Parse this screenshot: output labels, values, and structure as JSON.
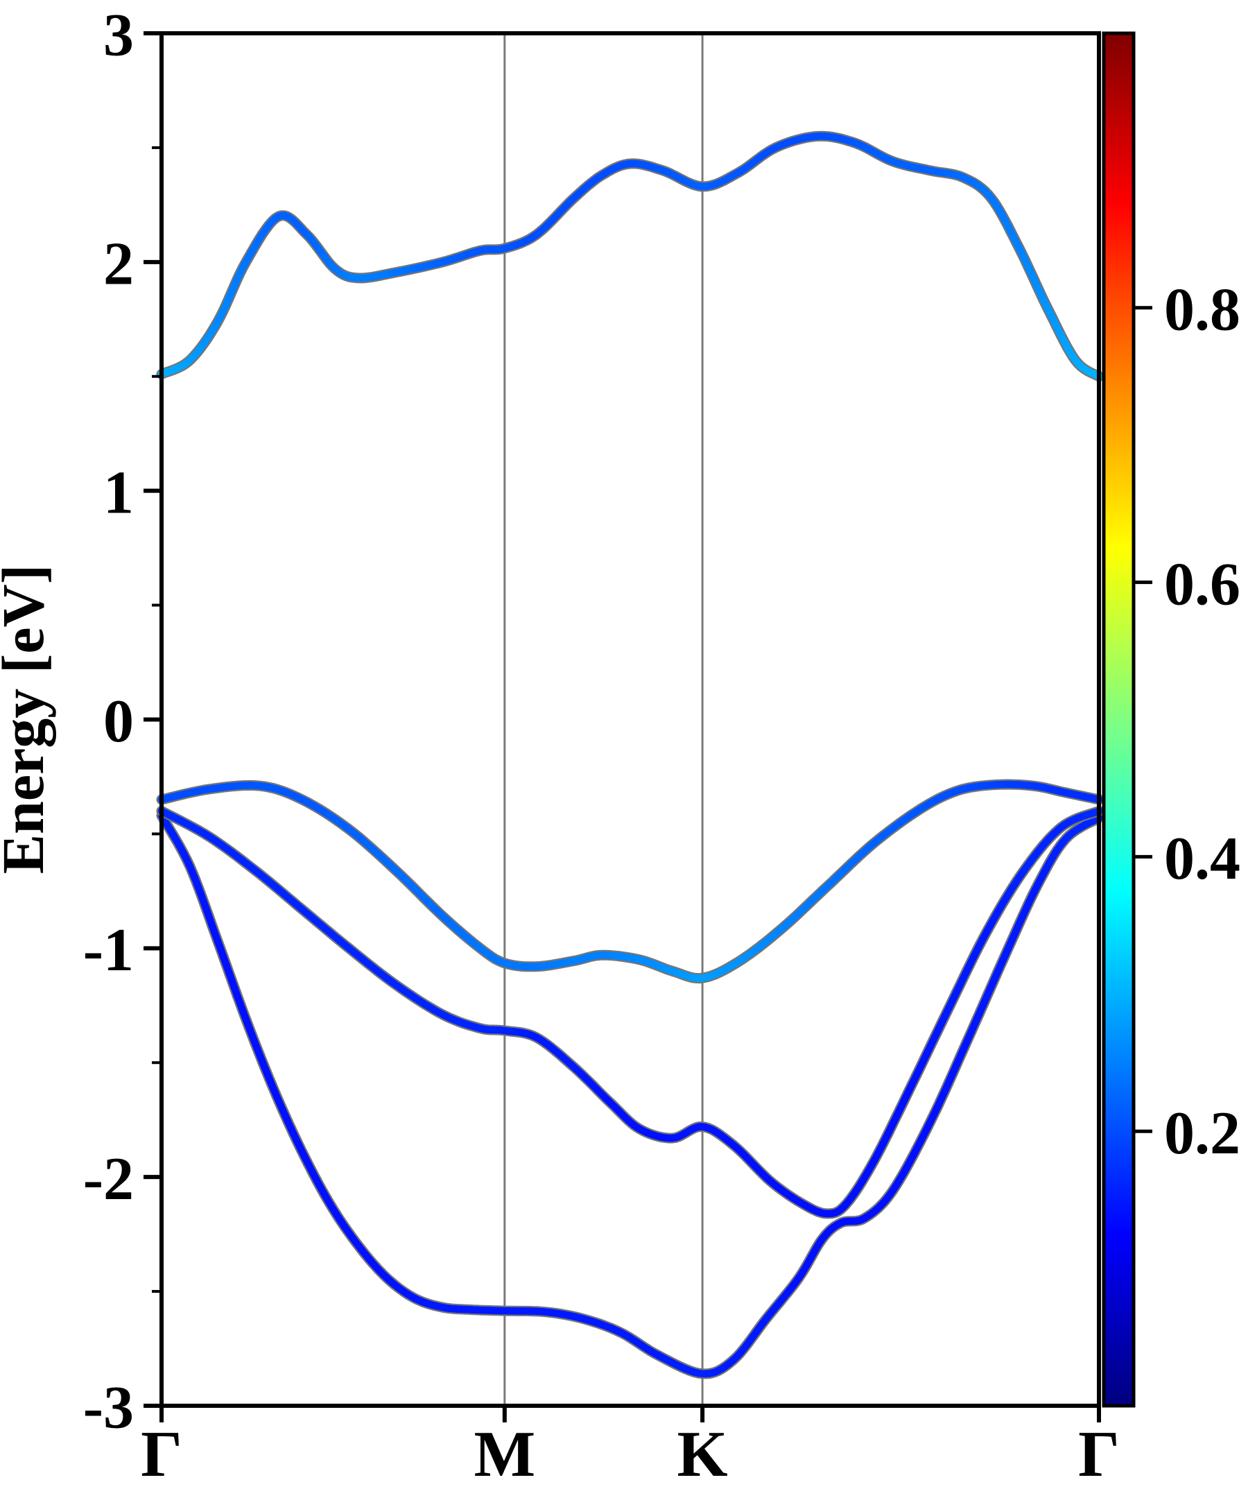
{
  "axes": {
    "ylabel": "Energy [eV]",
    "y_ticks": [
      3,
      2,
      1,
      0,
      -1,
      -2,
      -3
    ],
    "y_tick_labels": [
      "3",
      "2",
      "1",
      "0",
      "-1",
      "-2",
      "-3"
    ],
    "y_minor_ticks": [
      2.5,
      1.5,
      0.5,
      -0.5,
      -1.5,
      -2.5
    ],
    "x_tick_labels": [
      "Γ",
      "M",
      "K",
      "Γ"
    ],
    "x_tick_positions": [
      0,
      0.366,
      0.577,
      1
    ],
    "gridline_positions": [
      0.366,
      0.577
    ],
    "grid_color": "#7a7a7a",
    "spine_color": "#000000"
  },
  "colorbar": {
    "vmin": 0,
    "vmax": 1,
    "ticks": [
      0.2,
      0.4,
      0.6,
      0.8
    ],
    "tick_labels": [
      "0.2",
      "0.4",
      "0.6",
      "0.8"
    ],
    "colormap": "jet"
  },
  "chart_data": {
    "type": "line",
    "title": "",
    "xlabel": "",
    "ylabel": "Energy [eV]",
    "ylim": [
      -3,
      3
    ],
    "k_path_labels": [
      "Γ",
      "M",
      "K",
      "Γ"
    ],
    "k_path_positions": [
      0,
      0.366,
      0.577,
      1
    ],
    "line_outline_color": "#757575",
    "series": [
      {
        "name": "valence-band-1",
        "x": [
          0,
          0.03,
          0.06,
          0.09,
          0.12,
          0.15,
          0.18,
          0.21,
          0.24,
          0.27,
          0.3,
          0.33,
          0.366,
          0.41,
          0.45,
          0.49,
          0.53,
          0.577,
          0.61,
          0.645,
          0.68,
          0.705,
          0.725,
          0.75,
          0.78,
          0.82,
          0.86,
          0.9,
          0.935,
          0.965,
          1.0
        ],
        "y": [
          -0.42,
          -0.64,
          -0.97,
          -1.31,
          -1.62,
          -1.89,
          -2.12,
          -2.3,
          -2.44,
          -2.53,
          -2.57,
          -2.58,
          -2.585,
          -2.59,
          -2.62,
          -2.68,
          -2.78,
          -2.86,
          -2.8,
          -2.62,
          -2.44,
          -2.27,
          -2.2,
          -2.18,
          -2.06,
          -1.76,
          -1.4,
          -1.03,
          -0.72,
          -0.52,
          -0.43
        ],
        "color_value": [
          0.16,
          0.15,
          0.14,
          0.14,
          0.14,
          0.14,
          0.14,
          0.14,
          0.14,
          0.145,
          0.15,
          0.15,
          0.15,
          0.15,
          0.15,
          0.15,
          0.15,
          0.16,
          0.15,
          0.15,
          0.14,
          0.14,
          0.14,
          0.14,
          0.14,
          0.14,
          0.145,
          0.15,
          0.15,
          0.16,
          0.16
        ]
      },
      {
        "name": "valence-band-2",
        "x": [
          0,
          0.05,
          0.1,
          0.15,
          0.2,
          0.25,
          0.3,
          0.34,
          0.366,
          0.4,
          0.44,
          0.48,
          0.51,
          0.545,
          0.577,
          0.61,
          0.65,
          0.685,
          0.71,
          0.73,
          0.76,
          0.8,
          0.84,
          0.88,
          0.92,
          0.96,
          1.0
        ],
        "y": [
          -0.4,
          -0.51,
          -0.66,
          -0.83,
          -1.0,
          -1.16,
          -1.29,
          -1.35,
          -1.36,
          -1.39,
          -1.52,
          -1.68,
          -1.79,
          -1.83,
          -1.78,
          -1.86,
          -2.02,
          -2.12,
          -2.16,
          -2.12,
          -1.93,
          -1.6,
          -1.26,
          -0.93,
          -0.66,
          -0.47,
          -0.4
        ],
        "color_value": [
          0.17,
          0.16,
          0.16,
          0.16,
          0.16,
          0.16,
          0.16,
          0.16,
          0.16,
          0.15,
          0.15,
          0.14,
          0.14,
          0.14,
          0.145,
          0.14,
          0.14,
          0.14,
          0.14,
          0.14,
          0.14,
          0.14,
          0.15,
          0.15,
          0.16,
          0.16,
          0.17
        ]
      },
      {
        "name": "valence-band-3",
        "x": [
          0,
          0.05,
          0.105,
          0.15,
          0.2,
          0.25,
          0.3,
          0.34,
          0.366,
          0.4,
          0.44,
          0.47,
          0.51,
          0.545,
          0.577,
          0.615,
          0.66,
          0.71,
          0.76,
          0.81,
          0.85,
          0.89,
          0.93,
          0.965,
          1.0
        ],
        "y": [
          -0.35,
          -0.305,
          -0.29,
          -0.35,
          -0.48,
          -0.66,
          -0.86,
          -1.0,
          -1.065,
          -1.08,
          -1.055,
          -1.03,
          -1.05,
          -1.1,
          -1.13,
          -1.06,
          -0.92,
          -0.73,
          -0.54,
          -0.39,
          -0.31,
          -0.285,
          -0.29,
          -0.32,
          -0.35
        ],
        "color_value": [
          0.2,
          0.2,
          0.21,
          0.21,
          0.22,
          0.23,
          0.23,
          0.24,
          0.24,
          0.24,
          0.25,
          0.25,
          0.26,
          0.27,
          0.28,
          0.27,
          0.255,
          0.24,
          0.22,
          0.21,
          0.2,
          0.19,
          0.18,
          0.17,
          0.17
        ]
      },
      {
        "name": "conduction-band",
        "x": [
          0,
          0.03,
          0.06,
          0.09,
          0.125,
          0.155,
          0.185,
          0.21,
          0.25,
          0.3,
          0.34,
          0.366,
          0.4,
          0.44,
          0.47,
          0.5,
          0.535,
          0.577,
          0.615,
          0.655,
          0.7,
          0.74,
          0.78,
          0.82,
          0.855,
          0.885,
          0.915,
          0.945,
          0.975,
          1.0
        ],
        "y": [
          1.51,
          1.57,
          1.74,
          2.0,
          2.2,
          2.12,
          1.97,
          1.93,
          1.955,
          2.0,
          2.05,
          2.06,
          2.12,
          2.28,
          2.38,
          2.43,
          2.4,
          2.33,
          2.39,
          2.5,
          2.55,
          2.52,
          2.44,
          2.4,
          2.37,
          2.28,
          2.06,
          1.8,
          1.57,
          1.5
        ],
        "color_value": [
          0.3,
          0.28,
          0.26,
          0.24,
          0.22,
          0.22,
          0.24,
          0.25,
          0.24,
          0.22,
          0.21,
          0.21,
          0.2,
          0.2,
          0.2,
          0.2,
          0.21,
          0.22,
          0.21,
          0.2,
          0.2,
          0.21,
          0.22,
          0.22,
          0.23,
          0.24,
          0.25,
          0.27,
          0.29,
          0.3
        ]
      }
    ]
  }
}
